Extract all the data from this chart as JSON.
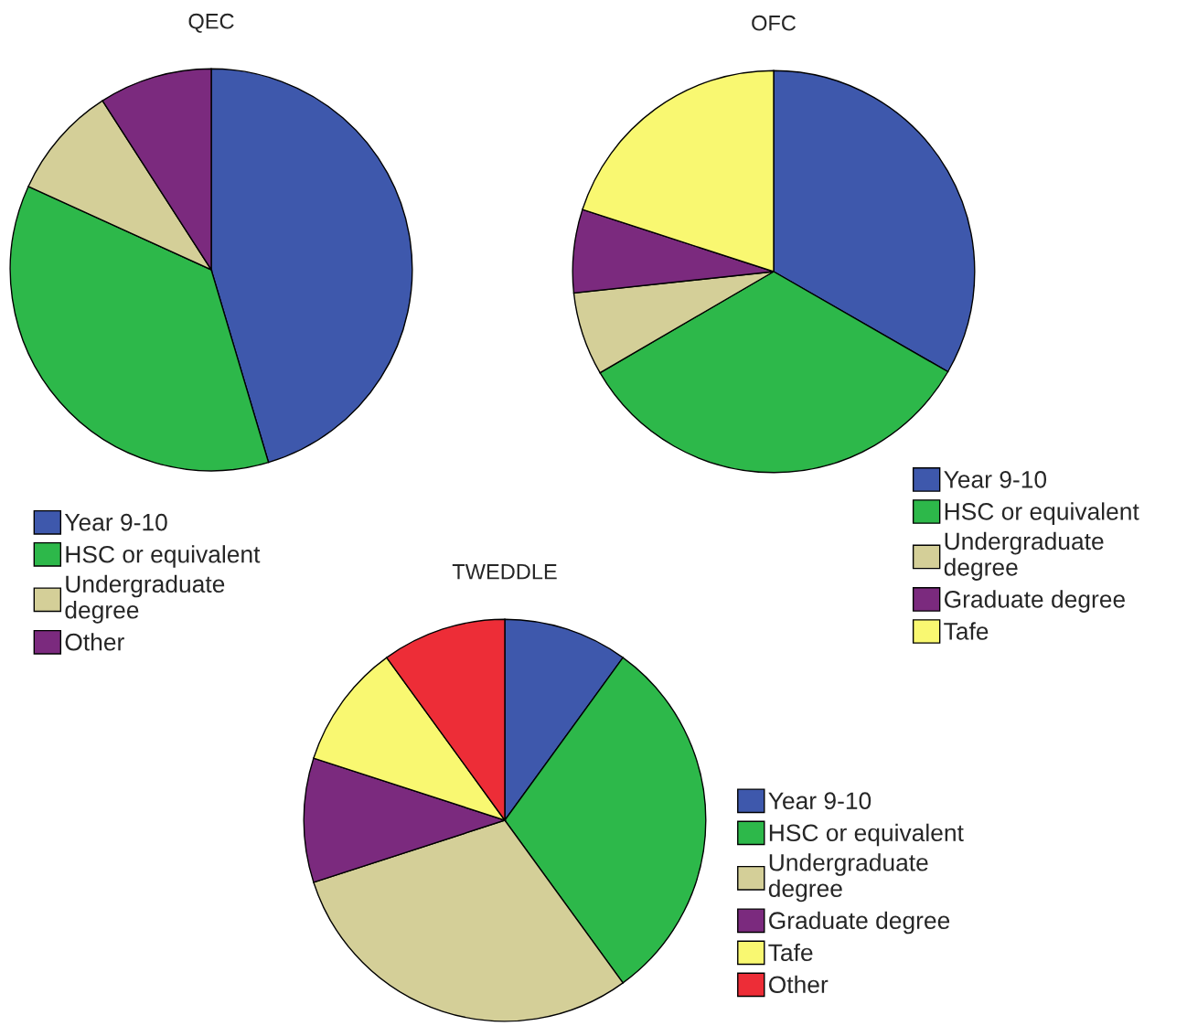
{
  "chart_data": [
    {
      "type": "pie",
      "title": "QEC",
      "categories": [
        "Year 9-10",
        "HSC or equivalent",
        "Undergraduate\ndegree",
        "Other"
      ],
      "values": [
        45.4,
        36.4,
        9.1,
        9.1
      ],
      "colors": [
        "#3e58ac",
        "#2db84a",
        "#d4cf98",
        "#7b2a7e"
      ],
      "legend": "bottom left"
    },
    {
      "type": "pie",
      "title": "OFC",
      "categories": [
        "Year 9-10",
        "HSC or equivalent",
        "Undergraduate\ndegree",
        "Graduate degree",
        "Tafe"
      ],
      "values": [
        33.3,
        33.3,
        6.7,
        6.7,
        20
      ],
      "colors": [
        "#3e58ac",
        "#2db84a",
        "#d4cf98",
        "#7b2a7e",
        "#f9f871"
      ],
      "legend": "bottom right"
    },
    {
      "type": "pie",
      "title": "TWEDDLE",
      "categories": [
        "Year 9-10",
        "HSC or equivalent",
        "Undergraduate\ndegree",
        "Graduate degree",
        "Tafe",
        "Other"
      ],
      "values": [
        10,
        30,
        30,
        10,
        10,
        10
      ],
      "colors": [
        "#3e58ac",
        "#2db84a",
        "#d4cf98",
        "#7b2a7e",
        "#f9f871",
        "#ed2d37"
      ],
      "legend": "right"
    }
  ]
}
